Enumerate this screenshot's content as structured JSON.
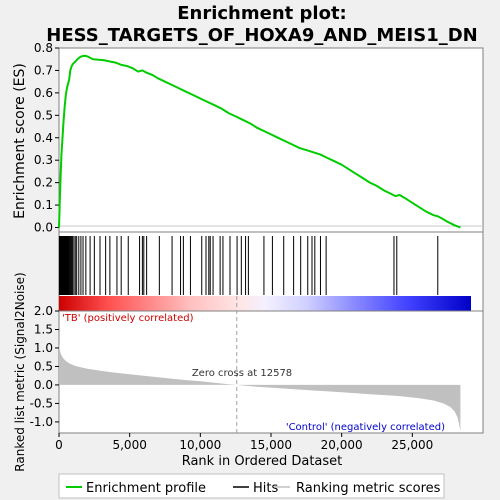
{
  "chart_data": {
    "type": "line",
    "title_line1": "Enrichment plot:",
    "title_line2": "HESS_TARGETS_OF_HOXA9_AND_MEIS1_DN",
    "es_panel": {
      "ylabel": "Enrichment score (ES)",
      "ylim": [
        -0.02,
        0.8
      ],
      "yticks": [
        "0.0",
        "0.1",
        "0.2",
        "0.3",
        "0.4",
        "0.5",
        "0.6",
        "0.7",
        "0.8"
      ],
      "series": [
        {
          "name": "Enrichment profile",
          "color": "#00cc00",
          "x": [
            0,
            60,
            120,
            180,
            250,
            320,
            400,
            480,
            560,
            640,
            720,
            800,
            900,
            1000,
            1150,
            1300,
            1500,
            1700,
            1900,
            2100,
            2400,
            2800,
            3200,
            3600,
            4000,
            4400,
            4800,
            5200,
            5600,
            5900,
            6200,
            6600,
            7000,
            7500,
            8000,
            8500,
            9000,
            9500,
            10000,
            10500,
            11000,
            11500,
            12000,
            12500,
            13000,
            13500,
            14000,
            14500,
            15000,
            15500,
            16000,
            16500,
            17000,
            17500,
            18000,
            18500,
            19000,
            19500,
            20000,
            20500,
            21000,
            21500,
            22000,
            22500,
            23000,
            23500,
            23800,
            24100,
            24500,
            25000,
            25500,
            26000,
            26500,
            26800,
            27100,
            27500,
            28000,
            28400
          ],
          "y": [
            0.0,
            0.12,
            0.24,
            0.33,
            0.4,
            0.47,
            0.54,
            0.59,
            0.62,
            0.64,
            0.66,
            0.7,
            0.72,
            0.73,
            0.74,
            0.75,
            0.76,
            0.765,
            0.765,
            0.76,
            0.75,
            0.748,
            0.745,
            0.74,
            0.735,
            0.725,
            0.72,
            0.71,
            0.695,
            0.7,
            0.69,
            0.68,
            0.665,
            0.65,
            0.635,
            0.62,
            0.605,
            0.59,
            0.575,
            0.56,
            0.545,
            0.53,
            0.51,
            0.495,
            0.48,
            0.465,
            0.445,
            0.43,
            0.415,
            0.4,
            0.385,
            0.37,
            0.355,
            0.345,
            0.335,
            0.325,
            0.31,
            0.295,
            0.28,
            0.26,
            0.24,
            0.22,
            0.2,
            0.185,
            0.165,
            0.15,
            0.14,
            0.145,
            0.13,
            0.11,
            0.09,
            0.07,
            0.055,
            0.05,
            0.04,
            0.025,
            0.01,
            0.0
          ]
        }
      ]
    },
    "hits_panel": {
      "hit_positions": [
        30,
        60,
        90,
        120,
        150,
        180,
        210,
        240,
        270,
        300,
        330,
        360,
        400,
        440,
        480,
        520,
        560,
        600,
        650,
        700,
        760,
        820,
        880,
        950,
        1050,
        1150,
        1250,
        1400,
        1550,
        1700,
        1900,
        2200,
        2500,
        2900,
        3300,
        3600,
        4100,
        4400,
        4900,
        5700,
        5900,
        6000,
        6200,
        7100,
        8000,
        8600,
        8800,
        9300,
        10100,
        10400,
        10600,
        10700,
        10900,
        11400,
        11600,
        12100,
        12600,
        12900,
        13200,
        13400,
        14500,
        15100,
        15900,
        16600,
        17100,
        17600,
        17900,
        18100,
        18500,
        18900,
        23700,
        23900,
        26800
      ]
    },
    "metric_panel": {
      "ylabel": "Ranked list metric (Signal2Noise)",
      "xlabel": "Rank in Ordered Dataset",
      "ylim": [
        -1.3,
        2.0
      ],
      "yticks": [
        "-1.0",
        "-0.5",
        "0.0",
        "0.5",
        "1.0",
        "1.5",
        "2.0"
      ],
      "xticks": [
        "0",
        "5,000",
        "10,000",
        "15,000",
        "20,000",
        "25,000"
      ],
      "xlim": [
        0,
        30000
      ],
      "zero_cross_rank": 12578,
      "zero_cross_label": "Zero cross at 12578",
      "pos_label": "'TB' (positively correlated)",
      "neg_label": "'Control' (negatively correlated)",
      "pos_color": "#cc0000",
      "neg_color": "#0000cc",
      "metric_x": [
        0,
        50,
        150,
        300,
        500,
        800,
        1200,
        2000,
        3000,
        4000,
        5000,
        6000,
        7000,
        8000,
        9000,
        10000,
        11000,
        12000,
        12578,
        14000,
        16000,
        18000,
        20000,
        22000,
        24000,
        25500,
        26500,
        27200,
        27700,
        28000,
        28200,
        28300,
        28400
      ],
      "metric_y": [
        1.15,
        0.95,
        0.82,
        0.72,
        0.64,
        0.57,
        0.51,
        0.44,
        0.38,
        0.33,
        0.29,
        0.25,
        0.21,
        0.17,
        0.13,
        0.1,
        0.06,
        0.02,
        0.0,
        -0.05,
        -0.1,
        -0.15,
        -0.2,
        -0.25,
        -0.3,
        -0.36,
        -0.42,
        -0.5,
        -0.6,
        -0.72,
        -0.88,
        -1.05,
        -1.25
      ]
    },
    "legend": {
      "placement": "bottom",
      "items": [
        {
          "label": "Enrichment profile",
          "color": "#00cc00"
        },
        {
          "label": "Hits",
          "color": "#000000"
        },
        {
          "label": "Ranking metric scores",
          "color": "#c0c0c0"
        }
      ]
    }
  }
}
